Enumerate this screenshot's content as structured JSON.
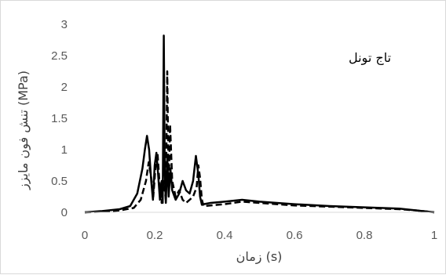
{
  "chart_data": {
    "type": "line",
    "xlabel": "زمان (s)",
    "ylabel": "تنش فون مایزز (MPa)",
    "annotation": "تاج تونل",
    "xlim": [
      0,
      1
    ],
    "ylim": [
      0,
      3
    ],
    "xticks": [
      "0",
      "0.2",
      "0.4",
      "0.6",
      "0.8",
      "1"
    ],
    "yticks": [
      "0",
      "0.5",
      "1",
      "1.5",
      "2",
      "2.5",
      "3"
    ],
    "grid": false,
    "legend": "none",
    "series": [
      {
        "style": "solid",
        "color": "#000000",
        "x": [
          0,
          0.05,
          0.1,
          0.13,
          0.15,
          0.165,
          0.172,
          0.178,
          0.184,
          0.19,
          0.195,
          0.2,
          0.205,
          0.21,
          0.215,
          0.22,
          0.223,
          0.226,
          0.229,
          0.232,
          0.236,
          0.24,
          0.245,
          0.25,
          0.26,
          0.27,
          0.28,
          0.29,
          0.3,
          0.31,
          0.318,
          0.325,
          0.33,
          0.335,
          0.34,
          0.36,
          0.4,
          0.45,
          0.5,
          0.6,
          0.7,
          0.8,
          0.9,
          0.95,
          1.0
        ],
        "y": [
          0,
          0.02,
          0.05,
          0.1,
          0.3,
          0.7,
          1.0,
          1.22,
          1.0,
          0.5,
          0.2,
          0.75,
          0.95,
          0.6,
          0.2,
          0.5,
          0.15,
          2.82,
          0.6,
          0.15,
          0.9,
          0.25,
          0.7,
          0.35,
          0.2,
          0.3,
          0.5,
          0.35,
          0.3,
          0.5,
          0.9,
          0.6,
          0.25,
          0.12,
          0.13,
          0.15,
          0.17,
          0.2,
          0.17,
          0.13,
          0.1,
          0.08,
          0.06,
          0.03,
          0.0
        ]
      },
      {
        "style": "dashed",
        "color": "#000000",
        "x": [
          0,
          0.05,
          0.1,
          0.14,
          0.16,
          0.175,
          0.183,
          0.19,
          0.196,
          0.202,
          0.208,
          0.214,
          0.22,
          0.226,
          0.232,
          0.236,
          0.24,
          0.244,
          0.25,
          0.26,
          0.27,
          0.28,
          0.29,
          0.3,
          0.31,
          0.32,
          0.325,
          0.33,
          0.335,
          0.34,
          0.36,
          0.4,
          0.45,
          0.5,
          0.6,
          0.7,
          0.8,
          0.9,
          0.95,
          1.0
        ],
        "y": [
          0,
          0.01,
          0.03,
          0.07,
          0.2,
          0.5,
          0.8,
          0.55,
          0.25,
          0.7,
          0.95,
          0.45,
          0.15,
          0.5,
          0.2,
          2.25,
          0.35,
          1.4,
          0.5,
          0.25,
          0.35,
          0.2,
          0.15,
          0.2,
          0.25,
          0.4,
          0.75,
          0.55,
          0.2,
          0.1,
          0.11,
          0.13,
          0.17,
          0.15,
          0.11,
          0.09,
          0.07,
          0.05,
          0.03,
          0.0
        ]
      }
    ]
  }
}
